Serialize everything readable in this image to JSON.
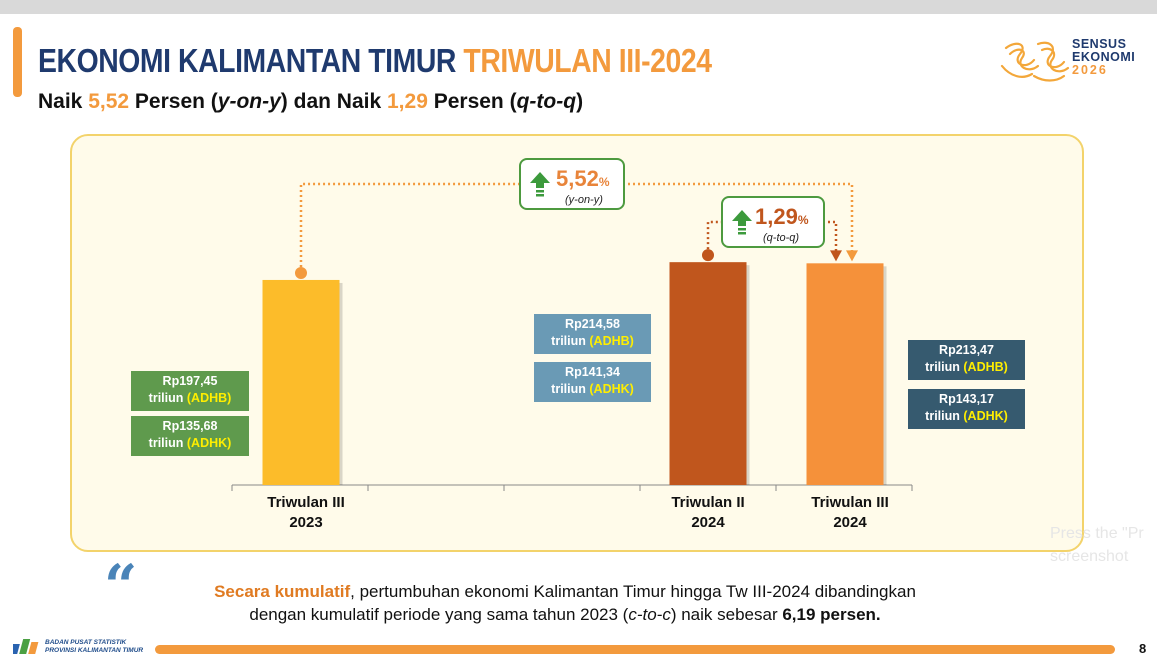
{
  "header": {
    "title_main": "EKONOMI KALIMANTAN TIMUR",
    "title_highlight": "TRIWULAN III-2024",
    "sub_prefix": "Naik ",
    "sub_yoy_value": "5,52",
    "sub_mid1": " Persen (",
    "sub_yoy_term": "y-on-y",
    "sub_mid2": ") dan Naik ",
    "sub_qtq_value": "1,29",
    "sub_mid3": " Persen (",
    "sub_qtq_term": "q-to-q",
    "sub_end": ")"
  },
  "logo": {
    "line1": "SENSUS",
    "line2": "EKONOMI",
    "line3": "2026",
    "icon": "sensus-ekonomi-logo-icon"
  },
  "chart_data": {
    "type": "bar",
    "categories": [
      [
        "Triwulan III",
        "2023"
      ],
      [
        "Triwulan II",
        "2024"
      ],
      [
        "Triwulan III",
        "2024"
      ]
    ],
    "values": [
      197.45,
      214.58,
      213.47
    ],
    "colors": [
      "#fcbc2a",
      "#c0561d",
      "#f5913a"
    ],
    "ylim": [
      0,
      260
    ],
    "grid": false,
    "labels": [
      {
        "line1": "Rp197,45",
        "prefix": "triliun ",
        "tag": "(ADHB)",
        "color": "#5f9a4d"
      },
      {
        "line1": "Rp135,68",
        "prefix": "triliun ",
        "tag": "(ADHK)",
        "color": "#5f9a4d"
      },
      {
        "line1": "Rp214,58",
        "prefix": "triliun ",
        "tag": "(ADHB)",
        "color": "#6a9ab5"
      },
      {
        "line1": "Rp141,34",
        "prefix": "triliun ",
        "tag": "(ADHK)",
        "color": "#6a9ab5"
      },
      {
        "line1": "Rp213,47",
        "prefix": "triliun ",
        "tag": "(ADHB)",
        "color": "#365a6f"
      },
      {
        "line1": "Rp143,17",
        "prefix": "triliun ",
        "tag": "(ADHK)",
        "color": "#365a6f"
      }
    ],
    "annotations": {
      "yoy": {
        "value": "5,52",
        "unit": "%",
        "term": "(y-on-y)",
        "color": "#e8843a"
      },
      "qtq": {
        "value": "1,29",
        "unit": "%",
        "term": "(q-to-q)",
        "color": "#c0561d"
      }
    }
  },
  "note": {
    "lead": "Secara kumulatif",
    "text1": ", pertumbuhan ekonomi Kalimantan Timur hingga Tw III-2024 dibandingkan",
    "text2": "dengan kumulatif periode yang sama tahun 2023 (",
    "term": "c-to-c",
    "text3": ") naik sebesar ",
    "value": "6,19 persen."
  },
  "footer": {
    "org_line1": "BADAN PUSAT STATISTIK",
    "org_line2": "PROVINSI KALIMANTAN TIMUR",
    "page": "8"
  },
  "overlay": {
    "line1": "Press the \"Pr",
    "line2": "screenshot"
  }
}
